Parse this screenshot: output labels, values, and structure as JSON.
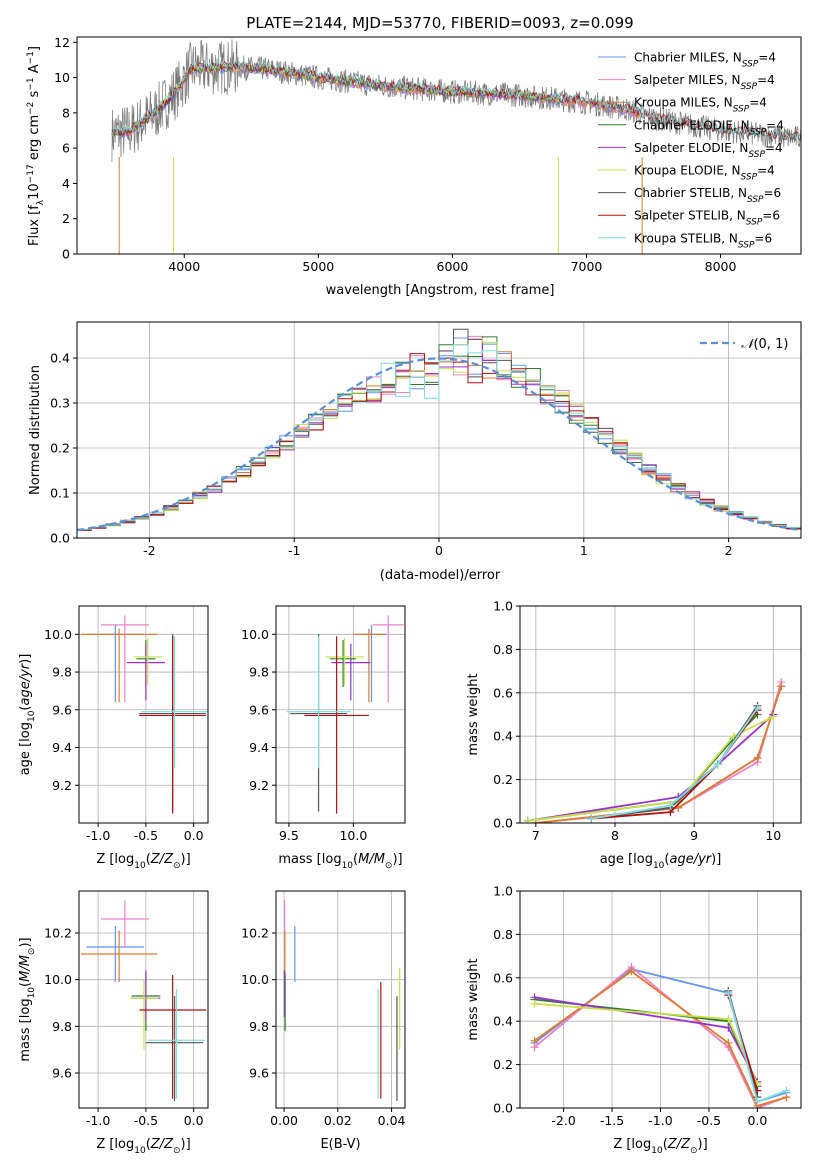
{
  "figure": {
    "title": "PLATE=2144, MJD=53770, FIBERID=0093, z=0.099"
  },
  "colors": {
    "Chabrier MILES": "#6495ed",
    "Salpeter MILES": "#ee82c8",
    "Kroupa MILES": "#e07b2c",
    "Chabrier ELODIE": "#2e7d2e",
    "Salpeter ELODIE": "#9932cc",
    "Kroupa ELODIE": "#c8e04a",
    "Chabrier STELIB": "#555555",
    "Salpeter STELIB": "#b01010",
    "Kroupa STELIB": "#7fdede",
    "grid": "#b0b0b0",
    "normal": "#5b8fd6"
  },
  "chart_data": [
    {
      "id": "spectrum",
      "type": "line",
      "title": "PLATE=2144, MJD=53770, FIBERID=0093, z=0.099",
      "xlabel": "wavelength [Angstrom, rest frame]",
      "ylabel": "Flux [f_λ 10^-17 erg cm^-2 s^-1 A^-1]",
      "xlim": [
        3200,
        8600
      ],
      "ylim": [
        0,
        12.3
      ],
      "xticks": [
        4000,
        5000,
        6000,
        7000,
        8000
      ],
      "yticks": [
        0,
        2,
        4,
        6,
        8,
        10,
        12
      ],
      "grid": false,
      "legend_position": "top-right",
      "legend": [
        "Chabrier MILES, N_SSP=4",
        "Salpeter MILES, N_SSP=4",
        "Kroupa MILES, N_SSP=4",
        "Chabrier ELODIE, N_SSP=4",
        "Salpeter ELODIE, N_SSP=4",
        "Kroupa ELODIE, N_SSP=4",
        "Chabrier STELIB, N_SSP=6",
        "Salpeter STELIB, N_SSP=6",
        "Kroupa STELIB, N_SSP=6"
      ],
      "continuum": {
        "x": [
          3450,
          3600,
          3800,
          3950,
          4050,
          4300,
          4600,
          5000,
          5500,
          6000,
          6500,
          7000,
          7300,
          7500,
          8000,
          8500
        ],
        "y": [
          6.8,
          7.0,
          8.1,
          9.3,
          10.5,
          10.6,
          10.5,
          10.0,
          9.5,
          9.2,
          9.0,
          8.6,
          8.2,
          7.7,
          7.0,
          6.6
        ]
      },
      "noise_amplitude": 0.7
    },
    {
      "id": "residuals",
      "type": "line",
      "xlabel": "(data-model)/error",
      "ylabel": "Normed distribution",
      "xlim": [
        -2.5,
        2.5
      ],
      "ylim": [
        0,
        0.48
      ],
      "xticks": [
        -2,
        -1,
        0,
        1,
        2
      ],
      "yticks": [
        0.0,
        0.1,
        0.2,
        0.3,
        0.4
      ],
      "grid": true,
      "legend_position": "top-right",
      "legend": [
        "N(0,1)"
      ],
      "bin_width": 0.1,
      "bin_start": -2.5
    },
    {
      "id": "age-vs-Z",
      "type": "scatter",
      "xlabel": "Z [log10(Z/Z⊙)]",
      "ylabel": "age [log10(age/yr)]",
      "xlim": [
        -1.2,
        0.15
      ],
      "ylim": [
        9.0,
        10.15
      ],
      "xticks": [
        -1.0,
        -0.5,
        0.0
      ],
      "yticks": [
        9.2,
        9.4,
        9.6,
        9.8,
        10.0
      ],
      "grid": true,
      "points": [
        {
          "model": "Chabrier MILES",
          "x": -0.82,
          "xerr": 0.3,
          "y": 10.0,
          "yerr": [
            0.36,
            0.05
          ]
        },
        {
          "model": "Salpeter MILES",
          "x": -0.72,
          "xerr": 0.25,
          "y": 10.05,
          "yerr": [
            0.41,
            0.05
          ]
        },
        {
          "model": "Kroupa MILES",
          "x": -0.78,
          "xerr": 0.4,
          "y": 10.0,
          "yerr": [
            0.36,
            0.03
          ]
        },
        {
          "model": "Chabrier ELODIE",
          "x": -0.5,
          "xerr": 0.1,
          "y": 9.87,
          "yerr": [
            0.15,
            0.1
          ]
        },
        {
          "model": "Salpeter ELODIE",
          "x": -0.5,
          "xerr": 0.2,
          "y": 9.85,
          "yerr": [
            0.2,
            0.1
          ]
        },
        {
          "model": "Kroupa ELODIE",
          "x": -0.48,
          "xerr": 0.15,
          "y": 9.88,
          "yerr": [
            0.15,
            0.1
          ]
        },
        {
          "model": "Chabrier STELIB",
          "x": -0.22,
          "xerr": 0.35,
          "y": 9.58,
          "yerr": [
            0.52,
            0.42
          ]
        },
        {
          "model": "Salpeter STELIB",
          "x": -0.22,
          "xerr": 0.35,
          "y": 9.57,
          "yerr": [
            0.52,
            0.42
          ]
        },
        {
          "model": "Kroupa STELIB",
          "x": -0.2,
          "xerr": 0.35,
          "y": 9.59,
          "yerr": [
            0.3,
            0.4
          ]
        }
      ]
    },
    {
      "id": "age-vs-mass",
      "type": "scatter",
      "xlabel": "mass [log10(M/M⊙)]",
      "ylabel": "",
      "xlim": [
        9.4,
        10.4
      ],
      "ylim": [
        9.0,
        10.15
      ],
      "xticks": [
        9.5,
        10.0
      ],
      "yticks": [
        9.2,
        9.4,
        9.6,
        9.8,
        10.0
      ],
      "grid": true,
      "points": [
        {
          "model": "Chabrier MILES",
          "x": 10.14,
          "xerr": 0.12,
          "y": 10.0,
          "yerr": [
            0.36,
            0.05
          ]
        },
        {
          "model": "Salpeter MILES",
          "x": 10.27,
          "xerr": 0.12,
          "y": 10.05,
          "yerr": [
            0.41,
            0.05
          ]
        },
        {
          "model": "Kroupa MILES",
          "x": 10.12,
          "xerr": 0.12,
          "y": 10.0,
          "yerr": [
            0.36,
            0.03
          ]
        },
        {
          "model": "Chabrier ELODIE",
          "x": 9.92,
          "xerr": 0.1,
          "y": 9.87,
          "yerr": [
            0.15,
            0.1
          ]
        },
        {
          "model": "Salpeter ELODIE",
          "x": 9.98,
          "xerr": 0.15,
          "y": 9.85,
          "yerr": [
            0.2,
            0.1
          ]
        },
        {
          "model": "Kroupa ELODIE",
          "x": 9.93,
          "xerr": 0.15,
          "y": 9.88,
          "yerr": [
            0.15,
            0.1
          ]
        },
        {
          "model": "Chabrier STELIB",
          "x": 9.73,
          "xerr": 0.22,
          "y": 9.58,
          "yerr": [
            0.52,
            0.42
          ]
        },
        {
          "model": "Salpeter STELIB",
          "x": 9.87,
          "xerr": 0.25,
          "y": 9.57,
          "yerr": [
            0.52,
            0.42
          ]
        },
        {
          "model": "Kroupa STELIB",
          "x": 9.73,
          "xerr": 0.25,
          "y": 9.59,
          "yerr": [
            0.3,
            0.4
          ]
        }
      ]
    },
    {
      "id": "mass-weight-vs-age",
      "type": "line",
      "xlabel": "age [log10(age/yr)]",
      "ylabel": "mass weight",
      "xlim": [
        6.8,
        10.35
      ],
      "ylim": [
        0,
        1.0
      ],
      "xticks": [
        7,
        8,
        9,
        10
      ],
      "yticks": [
        0.0,
        0.2,
        0.4,
        0.6,
        0.8,
        1.0
      ],
      "grid": true,
      "series": [
        {
          "model": "Chabrier MILES",
          "x": [
            7.0,
            8.8,
            9.8,
            10.1
          ],
          "y": [
            0.0,
            0.07,
            0.3,
            0.63
          ]
        },
        {
          "model": "Salpeter MILES",
          "x": [
            7.0,
            8.8,
            9.8,
            10.1
          ],
          "y": [
            0.0,
            0.07,
            0.28,
            0.65
          ]
        },
        {
          "model": "Kroupa MILES",
          "x": [
            7.0,
            8.8,
            9.8,
            10.1
          ],
          "y": [
            0.0,
            0.07,
            0.3,
            0.63
          ]
        },
        {
          "model": "Chabrier ELODIE",
          "x": [
            6.9,
            8.8,
            9.5,
            9.8
          ],
          "y": [
            0.01,
            0.1,
            0.39,
            0.5
          ]
        },
        {
          "model": "Salpeter ELODIE",
          "x": [
            6.9,
            8.8,
            9.3,
            10.0
          ],
          "y": [
            0.01,
            0.12,
            0.27,
            0.5
          ]
        },
        {
          "model": "Kroupa ELODIE",
          "x": [
            6.9,
            8.8,
            9.5,
            10.0
          ],
          "y": [
            0.01,
            0.1,
            0.4,
            0.49
          ]
        },
        {
          "model": "Chabrier STELIB",
          "x": [
            7.7,
            8.7,
            9.3,
            9.8
          ],
          "y": [
            0.02,
            0.07,
            0.27,
            0.54
          ]
        },
        {
          "model": "Salpeter STELIB",
          "x": [
            7.7,
            8.7,
            9.3,
            9.8
          ],
          "y": [
            0.02,
            0.05,
            0.27,
            0.52
          ]
        },
        {
          "model": "Kroupa STELIB",
          "x": [
            7.7,
            8.7,
            9.3,
            9.8
          ],
          "y": [
            0.02,
            0.08,
            0.27,
            0.53
          ]
        }
      ]
    },
    {
      "id": "mass-vs-Z",
      "type": "scatter",
      "xlabel": "Z [log10(Z/Z⊙)]",
      "ylabel": "mass [log10(M/M⊙)]",
      "xlim": [
        -1.2,
        0.15
      ],
      "ylim": [
        9.45,
        10.38
      ],
      "xticks": [
        -1.0,
        -0.5,
        0.0
      ],
      "yticks": [
        9.6,
        9.8,
        10.0,
        10.2
      ],
      "grid": true,
      "points": [
        {
          "model": "Chabrier MILES",
          "x": -0.82,
          "xerr": 0.3,
          "y": 10.14,
          "yerr": [
            0.15,
            0.09
          ]
        },
        {
          "model": "Salpeter MILES",
          "x": -0.72,
          "xerr": 0.25,
          "y": 10.26,
          "yerr": [
            0.12,
            0.08
          ]
        },
        {
          "model": "Kroupa MILES",
          "x": -0.78,
          "xerr": 0.4,
          "y": 10.11,
          "yerr": [
            0.12,
            0.1
          ]
        },
        {
          "model": "Chabrier ELODIE",
          "x": -0.5,
          "xerr": 0.15,
          "y": 9.93,
          "yerr": [
            0.15,
            0.1
          ]
        },
        {
          "model": "Salpeter ELODIE",
          "x": -0.5,
          "xerr": 0.15,
          "y": 9.92,
          "yerr": [
            0.1,
            0.12
          ]
        },
        {
          "model": "Kroupa ELODIE",
          "x": -0.52,
          "xerr": 0.15,
          "y": 9.92,
          "yerr": [
            0.22,
            0.08
          ]
        },
        {
          "model": "Chabrier STELIB",
          "x": -0.2,
          "xerr": 0.3,
          "y": 9.73,
          "yerr": [
            0.25,
            0.2
          ]
        },
        {
          "model": "Salpeter STELIB",
          "x": -0.22,
          "xerr": 0.35,
          "y": 9.87,
          "yerr": [
            0.38,
            0.15
          ]
        },
        {
          "model": "Kroupa STELIB",
          "x": -0.18,
          "xerr": 0.3,
          "y": 9.74,
          "yerr": [
            0.25,
            0.22
          ]
        }
      ]
    },
    {
      "id": "mass-vs-EBV",
      "type": "scatter",
      "xlabel": "E(B-V)",
      "ylabel": "",
      "xlim": [
        -0.003,
        0.045
      ],
      "ylim": [
        9.45,
        10.38
      ],
      "xticks": [
        0.0,
        0.02,
        0.04
      ],
      "yticks": [
        9.6,
        9.8,
        10.0,
        10.2
      ],
      "grid": true,
      "points": [
        {
          "model": "Chabrier MILES",
          "x": 0.004,
          "y": 10.14,
          "yerr": [
            0.15,
            0.09
          ]
        },
        {
          "model": "Salpeter MILES",
          "x": 0.0002,
          "y": 10.26,
          "yerr": [
            0.12,
            0.08
          ]
        },
        {
          "model": "Kroupa MILES",
          "x": 0.0003,
          "y": 10.11,
          "yerr": [
            0.12,
            0.1
          ]
        },
        {
          "model": "Chabrier ELODIE",
          "x": 0.0004,
          "y": 9.93,
          "yerr": [
            0.15,
            0.1
          ]
        },
        {
          "model": "Salpeter ELODIE",
          "x": 0.0001,
          "y": 9.92,
          "yerr": [
            0.08,
            0.12
          ]
        },
        {
          "model": "Kroupa ELODIE",
          "x": 0.043,
          "y": 9.87,
          "yerr": [
            0.17,
            0.18
          ]
        },
        {
          "model": "Chabrier STELIB",
          "x": 0.042,
          "y": 9.73,
          "yerr": [
            0.25,
            0.2
          ]
        },
        {
          "model": "Salpeter STELIB",
          "x": 0.036,
          "y": 9.87,
          "yerr": [
            0.38,
            0.12
          ]
        },
        {
          "model": "Kroupa STELIB",
          "x": 0.035,
          "y": 9.74,
          "yerr": [
            0.25,
            0.22
          ]
        }
      ]
    },
    {
      "id": "mass-weight-vs-Z",
      "type": "line",
      "xlabel": "Z [log10(Z/Z⊙)]",
      "ylabel": "mass weight",
      "xlim": [
        -2.45,
        0.45
      ],
      "ylim": [
        0,
        1.0
      ],
      "xticks": [
        -2.0,
        -1.5,
        -1.0,
        -0.5,
        0.0
      ],
      "yticks": [
        0.0,
        0.2,
        0.4,
        0.6,
        0.8,
        1.0
      ],
      "grid": true,
      "series": [
        {
          "model": "Chabrier MILES",
          "x": [
            -2.3,
            -1.3,
            -0.3,
            0.0,
            0.3
          ],
          "y": [
            0.3,
            0.64,
            0.53,
            0.03,
            0.07
          ]
        },
        {
          "model": "Salpeter MILES",
          "x": [
            -2.3,
            -1.3,
            -0.3,
            0.0,
            0.3
          ],
          "y": [
            0.28,
            0.65,
            0.28,
            0.0,
            0.05
          ]
        },
        {
          "model": "Kroupa MILES",
          "x": [
            -2.3,
            -1.3,
            -0.3,
            0.0,
            0.3
          ],
          "y": [
            0.31,
            0.63,
            0.3,
            0.01,
            0.05
          ]
        },
        {
          "model": "Chabrier ELODIE",
          "x": [
            -2.3,
            -0.3,
            0.0
          ],
          "y": [
            0.5,
            0.4,
            0.1
          ]
        },
        {
          "model": "Salpeter ELODIE",
          "x": [
            -2.3,
            -0.3,
            0.0
          ],
          "y": [
            0.51,
            0.37,
            0.12
          ]
        },
        {
          "model": "Kroupa ELODIE",
          "x": [
            -2.3,
            -0.3,
            0.0
          ],
          "y": [
            0.48,
            0.41,
            0.11
          ]
        },
        {
          "model": "Chabrier STELIB",
          "x": [
            -0.3,
            0.0
          ],
          "y": [
            0.54,
            0.05
          ]
        },
        {
          "model": "Salpeter STELIB",
          "x": [
            -0.3,
            0.0
          ],
          "y": [
            0.52,
            0.08
          ]
        },
        {
          "model": "Kroupa STELIB",
          "x": [
            -0.3,
            0.0,
            0.3
          ],
          "y": [
            0.53,
            0.03,
            0.08
          ]
        }
      ]
    }
  ]
}
